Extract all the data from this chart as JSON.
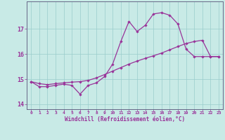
{
  "xlabel": "Windchill (Refroidissement éolien,°C)",
  "background_color": "#c8eae6",
  "line_color": "#993399",
  "grid_color": "#99cccc",
  "x_hours": [
    0,
    1,
    2,
    3,
    4,
    5,
    6,
    7,
    8,
    9,
    10,
    11,
    12,
    13,
    14,
    15,
    16,
    17,
    18,
    19,
    20,
    21,
    22,
    23
  ],
  "windchill": [
    14.9,
    14.7,
    14.7,
    14.75,
    14.8,
    14.75,
    14.4,
    14.75,
    14.85,
    15.1,
    15.6,
    16.5,
    17.3,
    16.9,
    17.15,
    17.6,
    17.65,
    17.55,
    17.2,
    16.2,
    15.9,
    15.9,
    15.9,
    15.9
  ],
  "temp_line": [
    14.9,
    14.82,
    14.78,
    14.82,
    14.85,
    14.88,
    14.9,
    14.95,
    15.05,
    15.18,
    15.32,
    15.46,
    15.6,
    15.72,
    15.83,
    15.93,
    16.04,
    16.17,
    16.3,
    16.42,
    16.5,
    16.55,
    15.9,
    15.9
  ],
  "ylim": [
    13.8,
    18.1
  ],
  "yticks": [
    14,
    15,
    16,
    17
  ],
  "xlim": [
    -0.5,
    23.5
  ]
}
